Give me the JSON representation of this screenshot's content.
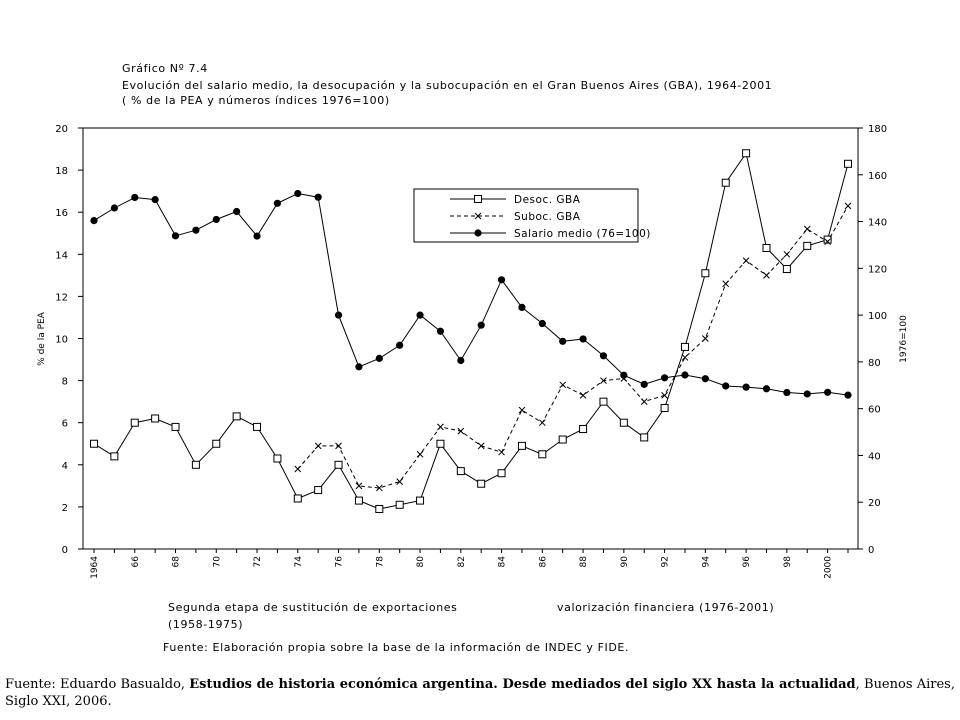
{
  "figure": {
    "title_line1": "Gráfico Nº 7.4",
    "title_line2": "Evolución del salario medio, la desocupación y la subocupación en el Gran Buenos Aires (GBA), 1964-2001",
    "title_line3": "( % de la PEA y números índices 1976=100)",
    "period1_line1": "Segunda etapa de sustitución de exportaciones",
    "period1_line2": "(1958-1975)",
    "period2": "valorización financiera (1976-2001)",
    "source_note": "Fuente: Elaboración propia sobre la base de la información de INDEC y FIDE."
  },
  "caption": {
    "prefix": "Fuente: Eduardo Basualdo, ",
    "title_bold": "Estudios de historia económica argentina. Desde mediados del siglo XX hasta la actualidad",
    "suffix": ", Buenos Aires, Siglo XXI, 2006."
  },
  "chart_data": {
    "type": "line",
    "x": [
      1964,
      1965,
      1966,
      1967,
      1968,
      1969,
      1970,
      1971,
      1972,
      1973,
      1974,
      1975,
      1976,
      1977,
      1978,
      1979,
      1980,
      1981,
      1982,
      1983,
      1984,
      1985,
      1986,
      1987,
      1988,
      1989,
      1990,
      1991,
      1992,
      1993,
      1994,
      1995,
      1996,
      1997,
      1998,
      1999,
      2000,
      2001
    ],
    "x_tick_values": [
      1964,
      1966,
      1968,
      1970,
      1972,
      1974,
      1976,
      1978,
      1980,
      1982,
      1984,
      1986,
      1988,
      1990,
      1992,
      1994,
      1996,
      1998,
      2000
    ],
    "x_tick_labels": [
      "1964",
      "66",
      "68",
      "70",
      "72",
      "74",
      "76",
      "78",
      "80",
      "82",
      "84",
      "86",
      "88",
      "90",
      "92",
      "94",
      "96",
      "98",
      "2000"
    ],
    "xlim": [
      1964,
      2001
    ],
    "ylabel_left": "% de la PEA",
    "ylabel_right": "1976=100",
    "ylim_left": [
      0,
      20
    ],
    "ylim_right": [
      0,
      180
    ],
    "yticks_left": [
      0,
      2,
      4,
      6,
      8,
      10,
      12,
      14,
      16,
      18,
      20
    ],
    "yticks_right": [
      0,
      20,
      40,
      60,
      80,
      100,
      120,
      140,
      160,
      180
    ],
    "grid": false,
    "legend_position": "upper-middle-right",
    "series": [
      {
        "name": "Desoc. GBA",
        "axis": "left",
        "marker": "square",
        "dash": "solid",
        "values": [
          5.0,
          4.4,
          6.0,
          6.2,
          5.8,
          4.0,
          5.0,
          6.3,
          5.8,
          4.3,
          2.4,
          2.8,
          4.0,
          2.3,
          1.9,
          2.1,
          2.3,
          5.0,
          3.7,
          3.1,
          3.6,
          4.9,
          4.5,
          5.2,
          5.7,
          7.0,
          6.0,
          5.3,
          6.7,
          9.6,
          13.1,
          17.4,
          18.8,
          14.3,
          13.3,
          14.4,
          14.7,
          18.3
        ]
      },
      {
        "name": "Suboc. GBA",
        "axis": "left",
        "marker": "x",
        "dash": "dashed",
        "values": [
          null,
          null,
          null,
          null,
          null,
          null,
          null,
          null,
          null,
          null,
          3.8,
          4.9,
          4.9,
          3.0,
          2.9,
          3.2,
          4.5,
          5.8,
          5.6,
          4.9,
          4.6,
          6.6,
          6.0,
          7.8,
          7.3,
          8.0,
          8.1,
          7.0,
          7.3,
          9.1,
          10.0,
          12.6,
          13.7,
          13.0,
          14.0,
          15.2,
          14.6,
          16.3
        ]
      },
      {
        "name": "Salario medio (76=100)",
        "axis": "right",
        "marker": "dot",
        "dash": "solid",
        "values": [
          140.4,
          145.8,
          150.3,
          149.4,
          133.9,
          136.3,
          140.9,
          144.3,
          133.8,
          147.8,
          152.0,
          150.4,
          100.0,
          77.9,
          81.5,
          87.1,
          100.0,
          93.1,
          80.6,
          95.7,
          115.1,
          103.3,
          96.4,
          88.8,
          89.8,
          82.6,
          74.3,
          70.4,
          73.2,
          74.4,
          72.8,
          69.7,
          69.2,
          68.5,
          66.9,
          66.3,
          67.0,
          65.8
        ]
      }
    ]
  }
}
